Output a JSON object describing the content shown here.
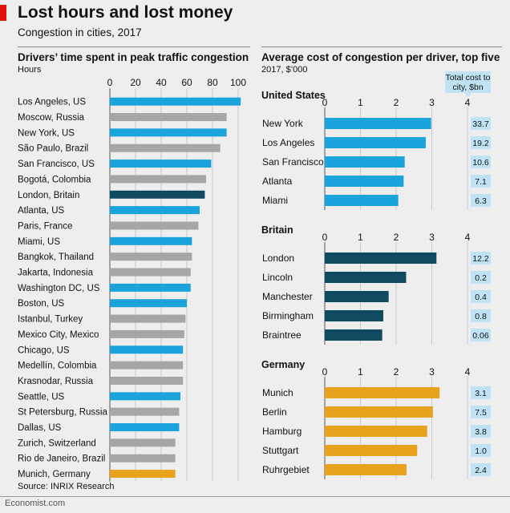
{
  "header": {
    "title": "Lost hours and lost money",
    "subtitle": "Congestion in cities, 2017"
  },
  "footer": {
    "source": "Source: INRIX Research",
    "brand": "Economist.com"
  },
  "colors": {
    "us": "#1ba4dc",
    "other": "#a6a6a6",
    "britain": "#104a60",
    "germany": "#e8a21e",
    "total_box": "#bfe3f4",
    "background": "#eeeeee",
    "brand_red": "#e3120b"
  },
  "chart_data": [
    {
      "type": "bar",
      "orientation": "horizontal",
      "title": "Drivers’ time spent in peak traffic congestion",
      "unit_label": "Hours",
      "xlim": [
        0,
        100
      ],
      "xticks": [
        0,
        20,
        40,
        60,
        80,
        100
      ],
      "grid": true,
      "categories": [
        "Los Angeles, US",
        "Moscow, Russia",
        "New York, US",
        "São Paulo, Brazil",
        "San Francisco, US",
        "Bogotá, Colombia",
        "London, Britain",
        "Atlanta, US",
        "Paris, France",
        "Miami, US",
        "Bangkok, Thailand",
        "Jakarta, Indonesia",
        "Washington DC, US",
        "Boston, US",
        "Istanbul, Turkey",
        "Mexico City, Mexico",
        "Chicago, US",
        "Medellín, Colombia",
        "Krasnodar, Russia",
        "Seattle, US",
        "St Petersburg, Russia",
        "Dallas, US",
        "Zurich, Switzerland",
        "Rio de Janeiro, Brazil",
        "Munich, Germany"
      ],
      "values": [
        102,
        91,
        91,
        86,
        79,
        75,
        74,
        70,
        69,
        64,
        64,
        63,
        63,
        60,
        59,
        58,
        57,
        57,
        57,
        55,
        54,
        54,
        51,
        51,
        51
      ],
      "groups": [
        "us",
        "other",
        "us",
        "other",
        "us",
        "other",
        "britain",
        "us",
        "other",
        "us",
        "other",
        "other",
        "us",
        "us",
        "other",
        "other",
        "us",
        "other",
        "other",
        "us",
        "other",
        "us",
        "other",
        "other",
        "germany"
      ]
    },
    {
      "type": "bar",
      "orientation": "horizontal",
      "title": "Average cost of congestion per driver, top five",
      "unit_label": "2017, $’000",
      "xlim": [
        0,
        4
      ],
      "xticks": [
        0,
        1,
        2,
        3,
        4
      ],
      "grid": true,
      "total_label": "Total cost to city, $bn",
      "panels": [
        {
          "name": "United States",
          "group": "us",
          "categories": [
            "New York",
            "Los Angeles",
            "San Francisco",
            "Atlanta",
            "Miami"
          ],
          "values": [
            2.98,
            2.83,
            2.24,
            2.21,
            2.06
          ],
          "totals": [
            "33.7",
            "19.2",
            "10.6",
            "7.1",
            "6.3"
          ]
        },
        {
          "name": "Britain",
          "group": "britain",
          "categories": [
            "London",
            "Lincoln",
            "Manchester",
            "Birmingham",
            "Braintree"
          ],
          "values": [
            3.13,
            2.28,
            1.79,
            1.64,
            1.61
          ],
          "totals": [
            "12.2",
            "0.2",
            "0.4",
            "0.8",
            "0.06"
          ]
        },
        {
          "name": "Germany",
          "group": "germany",
          "categories": [
            "Munich",
            "Berlin",
            "Hamburg",
            "Stuttgart",
            "Ruhrgebiet"
          ],
          "values": [
            3.22,
            3.03,
            2.87,
            2.59,
            2.29
          ],
          "totals": [
            "3.1",
            "7.5",
            "3.8",
            "1.0",
            "2.4"
          ]
        }
      ]
    }
  ]
}
